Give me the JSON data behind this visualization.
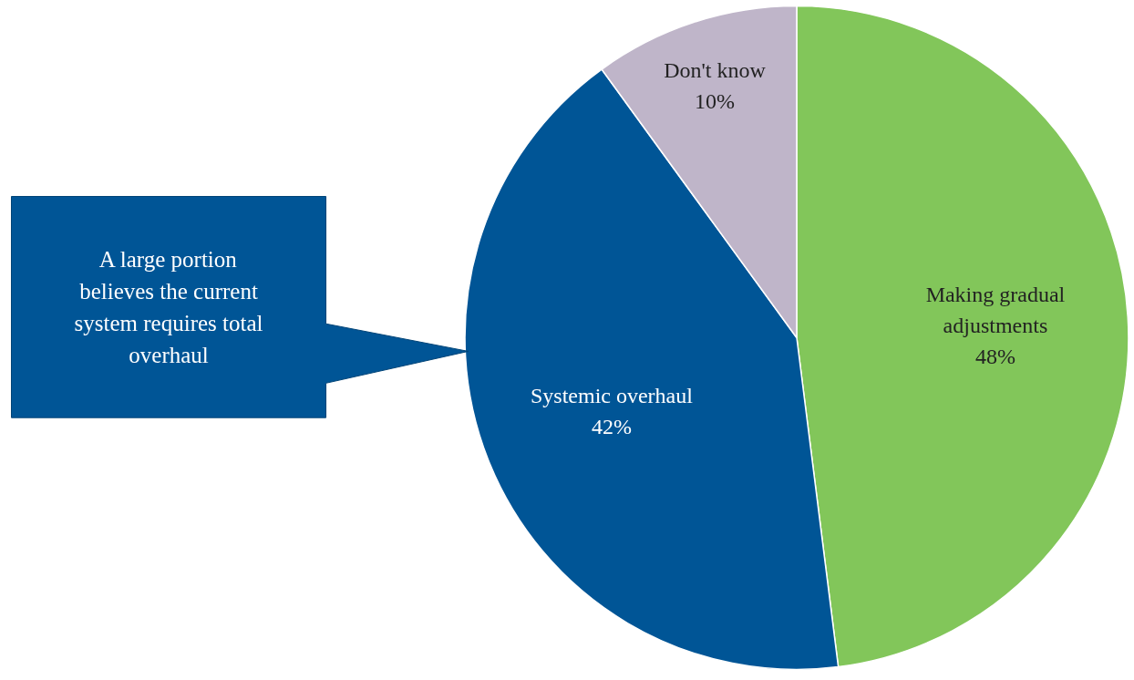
{
  "chart_data": {
    "type": "pie",
    "categories": [
      "Making gradual adjustments",
      "Systemic overhaul",
      "Don't know"
    ],
    "values": [
      48,
      42,
      10
    ],
    "colors": [
      "#82c65a",
      "#005596",
      "#bfb5c9"
    ],
    "value_labels": [
      "48%",
      "42%",
      "10%"
    ],
    "annotations": [
      "A large portion believes the current system requires total overhaul"
    ]
  }
}
